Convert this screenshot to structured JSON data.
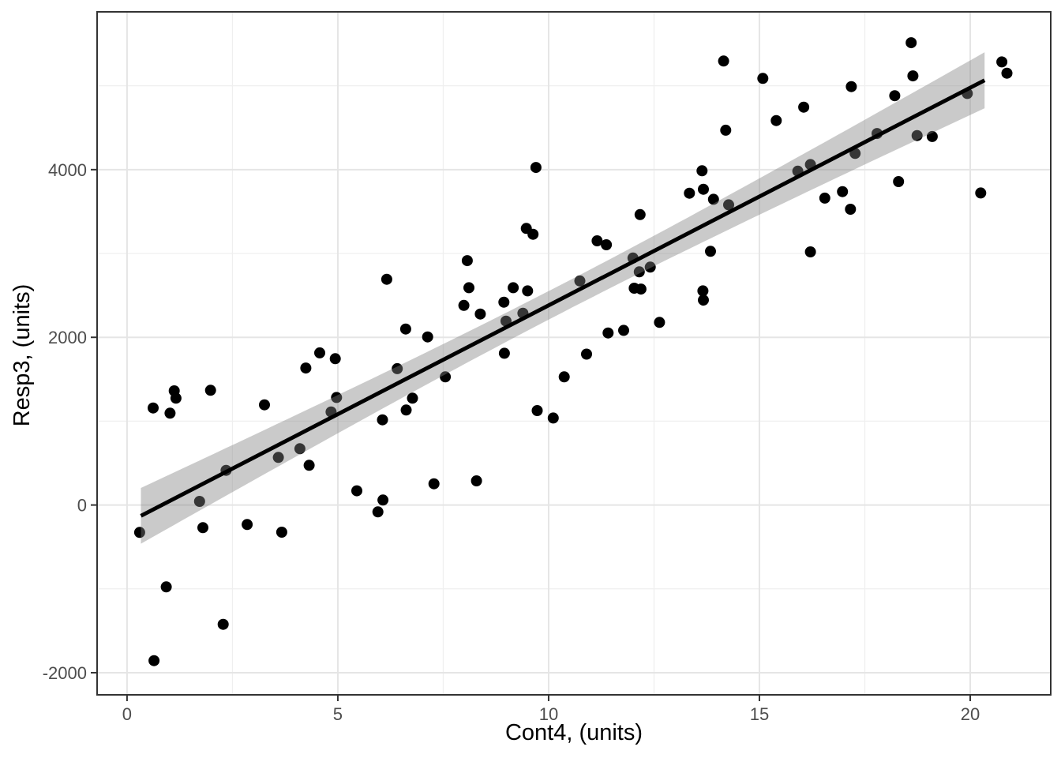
{
  "chart_data": {
    "type": "scatter",
    "title": "",
    "xlabel": "Cont4, (units)",
    "ylabel": "Resp3, (units)",
    "xlim": [
      -0.71,
      21.91
    ],
    "ylim": [
      -2264,
      5882
    ],
    "x_ticks": [
      0,
      5,
      10,
      15,
      20
    ],
    "x_minor_ticks": [
      2.5,
      7.5,
      12.5,
      17.5
    ],
    "y_ticks": [
      -2000,
      0,
      2000,
      4000
    ],
    "y_minor_ticks": [
      -1000,
      1000,
      3000,
      5000
    ],
    "grid": true,
    "legend": "none",
    "points": [
      [
        0.3,
        -327
      ],
      [
        0.62,
        1157
      ],
      [
        0.64,
        -1856
      ],
      [
        0.93,
        -977
      ],
      [
        1.02,
        1095
      ],
      [
        1.12,
        1362
      ],
      [
        1.16,
        1274
      ],
      [
        1.72,
        43
      ],
      [
        1.8,
        -270
      ],
      [
        1.98,
        1368
      ],
      [
        2.28,
        -1423
      ],
      [
        2.35,
        413
      ],
      [
        2.85,
        -233
      ],
      [
        3.26,
        1195
      ],
      [
        3.59,
        568
      ],
      [
        3.67,
        -324
      ],
      [
        4.1,
        671
      ],
      [
        4.24,
        1634
      ],
      [
        4.32,
        474
      ],
      [
        4.57,
        1815
      ],
      [
        4.84,
        1110
      ],
      [
        4.94,
        1745
      ],
      [
        4.97,
        1283
      ],
      [
        5.45,
        169
      ],
      [
        5.95,
        -82
      ],
      [
        6.06,
        1016
      ],
      [
        6.07,
        59
      ],
      [
        6.16,
        2692
      ],
      [
        6.41,
        1626
      ],
      [
        6.61,
        2099
      ],
      [
        6.62,
        1133
      ],
      [
        6.77,
        1274
      ],
      [
        7.13,
        2005
      ],
      [
        7.28,
        253
      ],
      [
        7.55,
        1528
      ],
      [
        7.99,
        2381
      ],
      [
        8.07,
        2915
      ],
      [
        8.11,
        2592
      ],
      [
        8.29,
        288
      ],
      [
        8.38,
        2278
      ],
      [
        8.94,
        2419
      ],
      [
        8.95,
        1810
      ],
      [
        8.99,
        2193
      ],
      [
        9.16,
        2592
      ],
      [
        9.39,
        2287
      ],
      [
        9.47,
        3299
      ],
      [
        9.5,
        2554
      ],
      [
        9.63,
        3229
      ],
      [
        9.7,
        4026
      ],
      [
        9.73,
        1126
      ],
      [
        10.11,
        1038
      ],
      [
        10.37,
        1528
      ],
      [
        10.74,
        2673
      ],
      [
        10.9,
        1800
      ],
      [
        11.15,
        3151
      ],
      [
        11.37,
        3104
      ],
      [
        11.41,
        2052
      ],
      [
        11.78,
        2083
      ],
      [
        12.0,
        2946
      ],
      [
        12.03,
        2586
      ],
      [
        12.15,
        2781
      ],
      [
        12.17,
        3464
      ],
      [
        12.19,
        2576
      ],
      [
        12.41,
        2837
      ],
      [
        12.63,
        2178
      ],
      [
        13.34,
        3719
      ],
      [
        13.64,
        3986
      ],
      [
        13.66,
        2554
      ],
      [
        13.67,
        2444
      ],
      [
        13.67,
        3766
      ],
      [
        13.84,
        3026
      ],
      [
        13.91,
        3646
      ],
      [
        14.15,
        5295
      ],
      [
        14.2,
        4470
      ],
      [
        14.27,
        3580
      ],
      [
        15.08,
        5088
      ],
      [
        15.4,
        4585
      ],
      [
        15.91,
        3982
      ],
      [
        16.05,
        4745
      ],
      [
        16.21,
        4061
      ],
      [
        16.21,
        3019
      ],
      [
        16.55,
        3660
      ],
      [
        16.97,
        3738
      ],
      [
        17.16,
        3528
      ],
      [
        17.18,
        4990
      ],
      [
        17.27,
        4193
      ],
      [
        17.79,
        4431
      ],
      [
        18.21,
        4882
      ],
      [
        18.3,
        3857
      ],
      [
        18.6,
        5514
      ],
      [
        18.64,
        5118
      ],
      [
        18.74,
        4406
      ],
      [
        19.1,
        4395
      ],
      [
        19.93,
        4908
      ],
      [
        20.25,
        3722
      ],
      [
        20.75,
        5285
      ],
      [
        20.87,
        5150
      ]
    ],
    "regression": {
      "type": "linear",
      "slope": 259.6,
      "intercept": -214.7,
      "x_start": 0.33,
      "x_end": 20.34,
      "band_halfwidth_center": 170,
      "band_halfwidth_end": 333,
      "x_mean": 10.3,
      "x_end_dist": 10
    },
    "style": {
      "point_color": "#000000",
      "point_radius": 7,
      "line_color": "#000000",
      "line_width": 5,
      "band_color": "#808080",
      "band_opacity": 0.42,
      "grid_major_color": "#e5e5e5",
      "grid_minor_color": "#efefef",
      "panel_border_color": "#333333",
      "tick_color": "#333333",
      "tick_label_color": "#4d4d4d",
      "axis_title_color": "#000000",
      "background": "#ffffff"
    }
  }
}
